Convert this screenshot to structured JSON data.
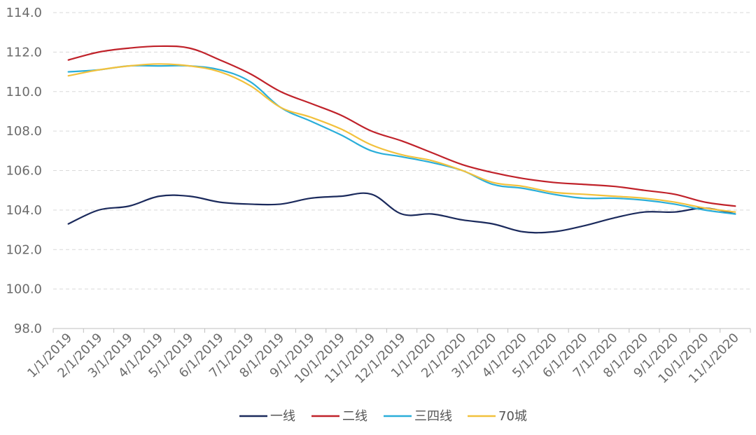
{
  "chart_data": {
    "type": "line",
    "title": "",
    "xlabel": "",
    "ylabel": "",
    "ylim": [
      98.0,
      114.0
    ],
    "yticks": [
      "98.0",
      "100.0",
      "102.0",
      "104.0",
      "106.0",
      "108.0",
      "110.0",
      "112.0",
      "114.0"
    ],
    "categories": [
      "1/1/2019",
      "2/1/2019",
      "3/1/2019",
      "4/1/2019",
      "5/1/2019",
      "6/1/2019",
      "7/1/2019",
      "8/1/2019",
      "9/1/2019",
      "10/1/2019",
      "11/1/2019",
      "12/1/2019",
      "1/1/2020",
      "2/1/2020",
      "3/1/2020",
      "4/1/2020",
      "5/1/2020",
      "6/1/2020",
      "7/1/2020",
      "8/1/2020",
      "9/1/2020",
      "10/1/2020",
      "11/1/2020"
    ],
    "grid": true,
    "legend_position": "bottom",
    "series": [
      {
        "name": "一线",
        "color": "#1b2a5c",
        "values": [
          103.3,
          104.0,
          104.2,
          104.7,
          104.7,
          104.4,
          104.3,
          104.3,
          104.6,
          104.7,
          104.8,
          103.8,
          103.8,
          103.5,
          103.3,
          102.9,
          102.9,
          103.2,
          103.6,
          103.9,
          103.9,
          104.1,
          103.8
        ]
      },
      {
        "name": "二线",
        "color": "#c0222a",
        "values": [
          111.6,
          112.0,
          112.2,
          112.3,
          112.2,
          111.6,
          110.9,
          110.0,
          109.4,
          108.8,
          108.0,
          107.5,
          106.9,
          106.3,
          105.9,
          105.6,
          105.4,
          105.3,
          105.2,
          105.0,
          104.8,
          104.4,
          104.2
        ]
      },
      {
        "name": "三四线",
        "color": "#2aaed9",
        "values": [
          111.0,
          111.1,
          111.3,
          111.3,
          111.3,
          111.1,
          110.5,
          109.2,
          108.5,
          107.8,
          107.0,
          106.7,
          106.4,
          106.0,
          105.3,
          105.1,
          104.8,
          104.6,
          104.6,
          104.5,
          104.3,
          104.0,
          103.8
        ]
      },
      {
        "name": "70城",
        "color": "#f2c13c",
        "values": [
          110.8,
          111.1,
          111.3,
          111.4,
          111.3,
          111.0,
          110.3,
          109.2,
          108.7,
          108.1,
          107.3,
          106.8,
          106.5,
          106.0,
          105.4,
          105.2,
          104.9,
          104.8,
          104.7,
          104.6,
          104.4,
          104.1,
          103.9
        ]
      }
    ]
  }
}
